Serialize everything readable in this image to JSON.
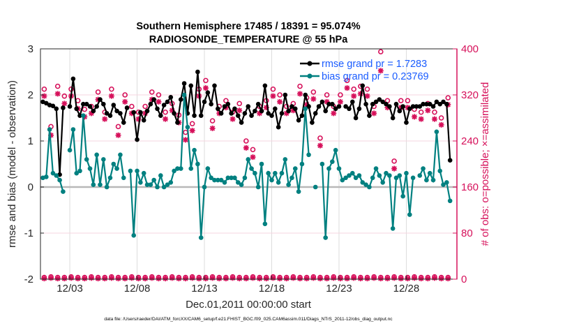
{
  "chart_data": {
    "type": "line",
    "title": "Southern Hemisphere 17485 / 18391 = 95.074%",
    "subtitle": "RADIOSONDE_TEMPERATURE @ 55 hPa",
    "xlabel": "Dec.01,2011 00:00:00 start",
    "ylabel": "rmse and bias (model - observation)",
    "ylabel_right": "# of obs: o=possible; ×=assimilated",
    "footnote": "data file: /Users/raeder/DAI/ATM_forcXX/CAM6_setup/f.e21.FHIST_BGC.f09_025.CAM6assim.011/Diags_NTrS_2011-12/obs_diag_output.nc",
    "xlim": [
      -0.18,
      30.76
    ],
    "ylim": [
      -2,
      3
    ],
    "ylim_right": [
      0,
      400
    ],
    "grid": true,
    "legend_position": "top-right",
    "x_ticks": [
      {
        "value": 2,
        "label": "12/03"
      },
      {
        "value": 7,
        "label": "12/08"
      },
      {
        "value": 12,
        "label": "12/13"
      },
      {
        "value": 17,
        "label": "12/18"
      },
      {
        "value": 22,
        "label": "12/23"
      },
      {
        "value": 27,
        "label": "12/28"
      }
    ],
    "y_ticks": [
      {
        "value": -2,
        "label": "-2"
      },
      {
        "value": -1,
        "label": "-1"
      },
      {
        "value": 0,
        "label": "0"
      },
      {
        "value": 1,
        "label": "1"
      },
      {
        "value": 2,
        "label": "2"
      },
      {
        "value": 3,
        "label": "3"
      }
    ],
    "y_ticks_right": [
      {
        "value": 0,
        "label": "0"
      },
      {
        "value": 80,
        "label": "80"
      },
      {
        "value": 160,
        "label": "160"
      },
      {
        "value": 240,
        "label": "240"
      },
      {
        "value": 320,
        "label": "320"
      },
      {
        "value": 400,
        "label": "400"
      }
    ],
    "x_step_days": 0.25,
    "series": [
      {
        "name": "rmse grand pr = 1.7283",
        "color": "#000000",
        "values": [
          1.85,
          1.82,
          1.78,
          1.76,
          1.7,
          0.27,
          1.72,
          null,
          1.75,
          2.35,
          1.7,
          1.55,
          1.8,
          1.8,
          1.75,
          1.65,
          1.75,
          1.9,
          1.8,
          1.6,
          1.55,
          1.78,
          1.65,
          1.6,
          1.4,
          1.72,
          null,
          1.62,
          1.03,
          1.62,
          1.45,
          1.65,
          1.8,
          1.9,
          1.7,
          1.55,
          1.78,
          1.85,
          1.95,
          1.6,
          1.4,
          1.9,
          2.25,
          1.6,
          2.2,
          1.55,
          2.5,
          1.55,
          1.85,
          2.05,
          1.8,
          2.2,
          1.7,
          1.6,
          1.75,
          1.8,
          1.6,
          1.7,
          1.55,
          1.4,
          1.6,
          1.75,
          1.55,
          1.65,
          1.8,
          1.65,
          2.2,
          1.6,
          1.55,
          1.7,
          1.3,
          1.6,
          2.0,
          1.65,
          1.75,
          1.7,
          1.45,
          1.55,
          2.0,
          1.75,
          1.4,
          1.6,
          1.75,
          1.85,
          1.65,
          1.8,
          1.8,
          1.7,
          1.75,
          null,
          1.75,
          1.7,
          1.85,
          1.5,
          1.7,
          2.2,
          1.8,
          1.55,
          1.8,
          1.85,
          1.9,
          1.85,
          1.8,
          1.75,
          1.5,
          1.8,
          1.65,
          1.75,
          1.4,
          1.7,
          1.75,
          1.75,
          1.75,
          1.8,
          1.8,
          1.8,
          1.75,
          1.85,
          1.8,
          1.85,
          1.8,
          0.58
        ]
      },
      {
        "name": "bias grand pr = 0.23769",
        "color": "#008080",
        "values": [
          0.2,
          0.22,
          1.25,
          0.3,
          0.25,
          0.15,
          -0.1,
          null,
          0.8,
          1.25,
          0.3,
          0.35,
          1.55,
          0.6,
          0.4,
          0.05,
          0.7,
          0.05,
          0.6,
          0.0,
          0.2,
          0.5,
          0.4,
          0.7,
          0.2,
          null,
          0.35,
          -1.05,
          0.35,
          0.1,
          0.3,
          0.05,
          0.05,
          0.15,
          0.0,
          0.25,
          0.0,
          0.05,
          0.1,
          0.35,
          0.4,
          0.4,
          2.0,
          1.3,
          0.4,
          0.8,
          0.5,
          -1.1,
          0.0,
          0.4,
          0.2,
          0.15,
          0.15,
          0.15,
          0.1,
          0.2,
          0.2,
          0.2,
          0.1,
          0.05,
          0.2,
          0.6,
          0.4,
          0.3,
          0.0,
          0.5,
          -0.8,
          0.3,
          0.15,
          0.3,
          0.1,
          0.3,
          0.6,
          0.05,
          0.2,
          0.4,
          -0.1,
          0.5,
          1.7,
          0.7,
          null,
          0.0,
          null,
          0.5,
          -1.1,
          0.4,
          0.55,
          0.8,
          0.4,
          0.15,
          0.2,
          0.25,
          0.3,
          0.2,
          0.25,
          0.1,
          0.05,
          0.0,
          0.2,
          0.4,
          0.25,
          0.1,
          0.3,
          0.25,
          -0.9,
          0.2,
          0.25,
          -0.2,
          0.3,
          -0.6,
          0.2,
          null,
          0.25,
          0.4,
          0.15,
          0.3,
          0.15,
          1.2,
          0.35,
          0.05,
          0.1,
          -0.3
        ]
      }
    ],
    "obs_step_days": 0.5,
    "obs_color": "#d6105a",
    "obs_possible": [
      330,
      265,
      335,
      318,
      330,
      310,
      295,
      300,
      325,
      290,
      330,
      265,
      320,
      300,
      290,
      300,
      325,
      320,
      290,
      305,
      285,
      255,
      270,
      330,
      345,
      275,
      300,
      310,
      290,
      305,
      240,
      225,
      300,
      310,
      330,
      320,
      300,
      305,
      335,
      315,
      325,
      245,
      320,
      300,
      320,
      345,
      330,
      335,
      330,
      300,
      395,
      310,
      205,
      310,
      310,
      295,
      290,
      305,
      290,
      280,
      315
    ],
    "obs_assimilated": [
      318,
      250,
      322,
      305,
      318,
      296,
      282,
      288,
      312,
      278,
      318,
      250,
      308,
      288,
      278,
      288,
      312,
      308,
      278,
      293,
      272,
      242,
      258,
      318,
      332,
      262,
      288,
      298,
      278,
      293,
      228,
      212,
      288,
      298,
      318,
      308,
      288,
      293,
      322,
      303,
      313,
      232,
      308,
      288,
      308,
      332,
      318,
      322,
      318,
      288,
      362,
      298,
      192,
      298,
      298,
      282,
      278,
      293,
      278,
      268,
      303
    ],
    "obs_possible_low": [
      3,
      4,
      3,
      3,
      4,
      3,
      3,
      4,
      3,
      3,
      4,
      3,
      3,
      4,
      3,
      3,
      4,
      3,
      3,
      4,
      3,
      3,
      4,
      3,
      3,
      4,
      3,
      3,
      4,
      3,
      3,
      4,
      3,
      3,
      4,
      3,
      3,
      4,
      3,
      3,
      4,
      3,
      3,
      4,
      3,
      3,
      4,
      3,
      3,
      4,
      3,
      3,
      4,
      3,
      3,
      4,
      3,
      3,
      4,
      3,
      3
    ],
    "obs_assimilated_low": [
      1,
      2,
      1,
      1,
      2,
      1,
      1,
      2,
      1,
      1,
      2,
      1,
      1,
      2,
      1,
      1,
      2,
      1,
      1,
      2,
      1,
      1,
      2,
      1,
      1,
      2,
      1,
      1,
      2,
      1,
      1,
      2,
      1,
      1,
      2,
      1,
      1,
      2,
      1,
      1,
      2,
      1,
      1,
      2,
      1,
      1,
      2,
      1,
      1,
      2,
      1,
      1,
      2,
      1,
      1,
      2,
      1,
      1,
      2,
      1,
      1
    ]
  }
}
